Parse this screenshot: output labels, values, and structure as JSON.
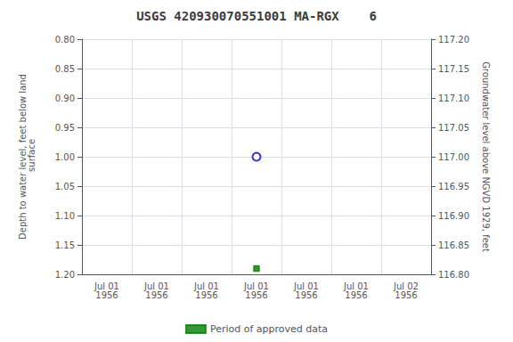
{
  "chart_data": {
    "type": "scatter",
    "title": "USGS 420930070551001 MA-RGX    6",
    "ylabel": "Depth to water level, feet below land\n surface",
    "y2label": "Groundwater level above NGVD 1929, feet",
    "categories": [
      "Jul 01\n1956",
      "Jul 01\n1956",
      "Jul 01\n1956",
      "Jul 01\n1956",
      "Jul 01\n1956",
      "Jul 01\n1956",
      "Jul 02\n1956"
    ],
    "series": [
      {
        "color": "#0000cc",
        "marker": "circle",
        "values": [
          null,
          null,
          null,
          1.0,
          null,
          null,
          null
        ]
      },
      {
        "name": "Period of approved data",
        "color": "#008000",
        "marker": "square",
        "values": [
          null,
          null,
          null,
          1.19,
          null,
          null,
          null
        ]
      }
    ],
    "ylim": [
      1.2,
      0.8
    ],
    "yticks": [
      {
        "value": 0.8,
        "label": "0.80"
      },
      {
        "value": 0.85,
        "label": "0.85"
      },
      {
        "value": 0.9,
        "label": "0.90"
      },
      {
        "value": 0.95,
        "label": "0.95"
      },
      {
        "value": 1.0,
        "label": "1.00"
      },
      {
        "value": 1.05,
        "label": "1.05"
      },
      {
        "value": 1.1,
        "label": "1.10"
      },
      {
        "value": 1.15,
        "label": "1.15"
      },
      {
        "value": 1.2,
        "label": "1.20"
      }
    ],
    "y2lim": [
      116.8,
      117.2
    ],
    "y2ticks": [
      {
        "value": 117.2,
        "label": "117.20"
      },
      {
        "value": 117.15,
        "label": "117.15"
      },
      {
        "value": 117.1,
        "label": "117.10"
      },
      {
        "value": 117.05,
        "label": "117.05"
      },
      {
        "value": 117.0,
        "label": "117.00"
      },
      {
        "value": 116.95,
        "label": "116.95"
      },
      {
        "value": 116.9,
        "label": "116.90"
      },
      {
        "value": 116.85,
        "label": "116.85"
      },
      {
        "value": 116.8,
        "label": "116.80"
      }
    ],
    "grid": true,
    "legend": "bottom"
  }
}
